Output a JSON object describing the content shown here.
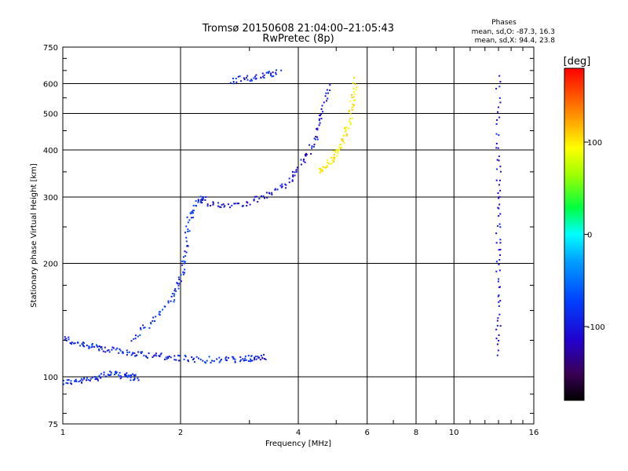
{
  "chart_data": {
    "type": "scatter",
    "title": "Tromsø 20150608 21:04:00–21:05:43",
    "subtitle": "RwPretec (8p)",
    "xlabel": "Frequency [MHz]",
    "ylabel": "Stationary phase Virtual Height [km]",
    "x_scale": "log",
    "y_scale": "log",
    "xlim": [
      1,
      16
    ],
    "ylim": [
      75,
      750
    ],
    "x_ticks": [
      1,
      2,
      4,
      6,
      8,
      10,
      16
    ],
    "y_ticks": [
      75,
      100,
      200,
      300,
      400,
      500,
      600,
      750
    ],
    "grid": true,
    "phases_info": {
      "title": "Phases",
      "line_o": "mean, sd,O:  -87.3, 16.3",
      "line_x": "mean, sd,X:  94.4, 23.8"
    },
    "colorbar": {
      "label": "[deg]",
      "range": [
        -180,
        180
      ],
      "ticks": [
        100,
        0,
        -100
      ]
    },
    "series": [
      {
        "note": "low trace near 100 km",
        "x": [
          1.0,
          1.1,
          1.2,
          1.3,
          1.4,
          1.48,
          1.55
        ],
        "y": [
          97,
          97,
          99,
          102,
          101,
          100,
          99
        ],
        "phase": -100
      },
      {
        "note": "E layer ~115 km",
        "x": [
          1.0,
          1.1,
          1.2,
          1.3,
          1.45,
          1.6,
          1.8,
          2.0,
          2.3,
          2.6,
          2.9,
          3.1,
          3.3
        ],
        "y": [
          127,
          122,
          120,
          118,
          116,
          115,
          113,
          112,
          111,
          111,
          111,
          112,
          113
        ],
        "phase": -100
      },
      {
        "note": "F rise",
        "x": [
          1.5,
          1.7,
          1.9,
          2.0,
          2.05,
          2.1,
          2.2,
          2.3
        ],
        "y": [
          125,
          140,
          160,
          180,
          210,
          260,
          290,
          300
        ],
        "phase": -95
      },
      {
        "note": "F2 O-trace",
        "x": [
          2.3,
          2.6,
          3.0,
          3.4,
          3.8,
          4.1,
          4.4,
          4.6,
          4.8
        ],
        "y": [
          290,
          285,
          290,
          305,
          330,
          370,
          420,
          500,
          600
        ],
        "phase": -110
      },
      {
        "note": "F2 X-trace",
        "x": [
          4.5,
          4.8,
          5.0,
          5.2,
          5.4,
          5.5,
          5.6
        ],
        "y": [
          350,
          370,
          390,
          420,
          470,
          540,
          620
        ],
        "phase": 100
      },
      {
        "note": "oblique echoes",
        "x": [
          2.7,
          3.0,
          3.3,
          3.6
        ],
        "y": [
          610,
          620,
          630,
          645
        ],
        "phase": -100
      },
      {
        "note": "vertical column",
        "x": [
          13,
          13,
          13,
          13,
          13,
          13
        ],
        "y": [
          115,
          160,
          220,
          300,
          420,
          650
        ],
        "phase": -110
      }
    ]
  }
}
